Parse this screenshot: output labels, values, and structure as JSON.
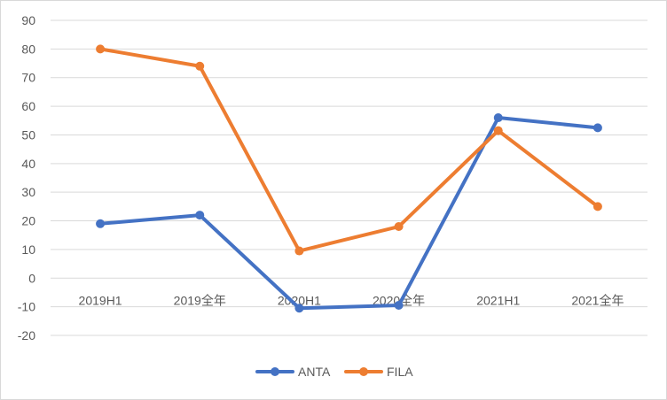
{
  "chart_data": {
    "type": "line",
    "categories": [
      "2019H1",
      "2019全年",
      "2020H1",
      "2020全年",
      "2021H1",
      "2021全年"
    ],
    "series": [
      {
        "name": "ANTA",
        "color": "#4472c4",
        "values": [
          19,
          22,
          -10.5,
          -9.5,
          56,
          52.5
        ]
      },
      {
        "name": "FILA",
        "color": "#ed7d31",
        "values": [
          80,
          74,
          9.5,
          18,
          51.5,
          25
        ]
      }
    ],
    "y_ticks": [
      90,
      80,
      70,
      60,
      50,
      40,
      30,
      20,
      10,
      0,
      -10,
      -20
    ],
    "ylim": [
      -20,
      90
    ],
    "grid": true,
    "legend": "bottom",
    "title": "",
    "xlabel": "",
    "ylabel": ""
  }
}
